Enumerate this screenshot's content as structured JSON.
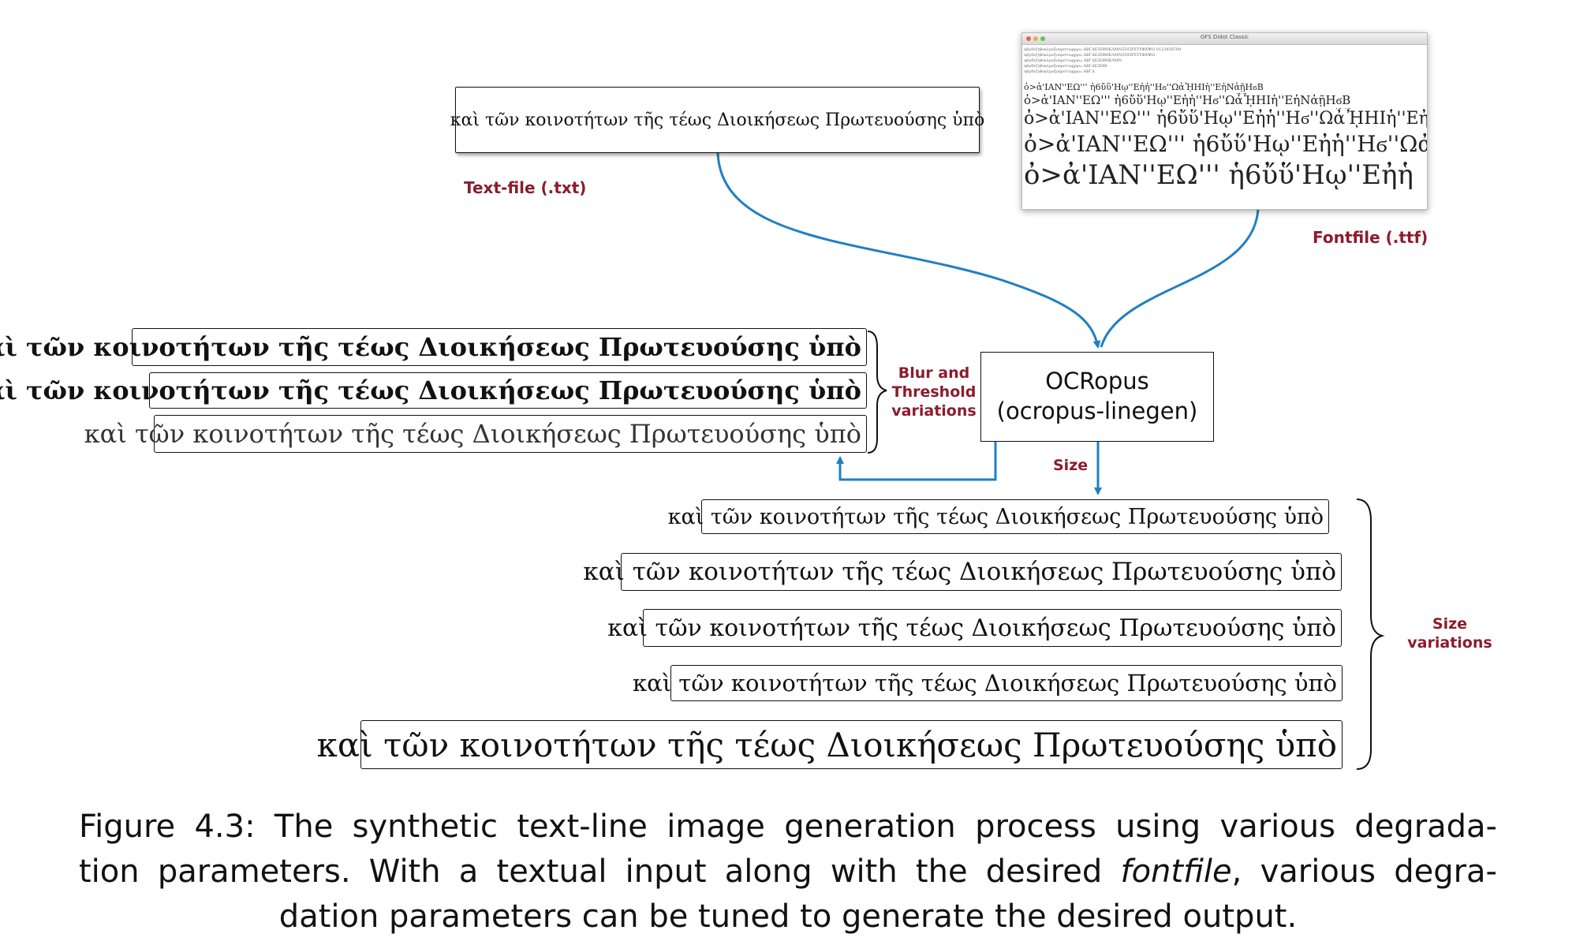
{
  "text_file": {
    "content": "καὶ τῶν κοινοτήτων τῆς τέως Διοικήσεως Πρωτευούσης ὑπὸ",
    "label": "Text-file (.txt)"
  },
  "font_file": {
    "label": "Fontfile (.ttf)",
    "window_title": "GFS Didot Classic",
    "glyph_lines": [
      "ὀ>ἀ'ΙΑΝ''ΕΩ''' ἡ6ὔὕ'Ηῳ''Εἠἡ''Ηϭ''ΩἆᾞΗΙἡ''ΕἠΝἀῇΗϭΒ",
      "ὀ>ἀ'ΙΑΝ''ΕΩ''' ἡ6ὔὕ'Ηῳ''Εἠἡ''Ηϭ''ΩἆᾞΗΙἡ''ΕἠΝἀῇΗϭΒ",
      "ὀ>ἀ'ΙΑΝ''ΕΩ''' ἡ6ὔὕ'Ηῳ''Εἠἡ''Ηϭ''ΩἆᾞΗΙἡ''ΕἠΝἀ",
      "ὀ>ἀ'ΙΑΝ''ΕΩ''' ἡ6ὔὕ'Ηῳ''Εἠἡ''Ηϭ''Ωἀ",
      "ὀ>ἀ'ΙΑΝ''ΕΩ''' ἡ6ὔὕ'Ηῳ''Εἠἡ"
    ]
  },
  "ocropus": {
    "line1": "OCRopus",
    "line2": "(ocropus-linegen)"
  },
  "blur_label": [
    "Blur and",
    "Threshold",
    "variations"
  ],
  "size_arrow_label": "Size",
  "size_variations_label": [
    "Size",
    "variations"
  ],
  "blur_lines": [
    "καὶ τῶν κοινοτήτων τῆς τέως Διοικήσεως Πρωτευούσης ὑπὸ",
    "καὶ τῶν κοινοτήτων τῆς τέως Διοικήσεως Πρωτευούσης ὑπὸ",
    "καὶ τῶν κοινοτήτων τῆς τέως Διοικήσεως Πρωτευούσης ὑπὸ"
  ],
  "size_lines": [
    "καὶ τῶν κοινοτήτων τῆς τέως Διοικήσεως Πρωτευούσης ὑπὸ",
    "καὶ τῶν κοινοτήτων τῆς τέως Διοικήσεως Πρωτευούσης ὑπὸ",
    "καὶ τῶν κοινοτήτων τῆς τέως Διοικήσεως Πρωτευούσης ὑπὸ",
    "καὶ τῶν κοινοτήτων τῆς τέως Διοικήσεως Πρωτευούσης ὑπὸ",
    "καὶ τῶν κοινοτήτων τῆς τέως Διοικήσεως Πρωτευούσης ὑπὸ"
  ],
  "caption": {
    "line1": "Figure 4.3: The synthetic text-line image generation process using various degrada-",
    "line2_a": "tion parameters. With a textual input along with the desired ",
    "line2_em": "fontfile",
    "line2_b": ", various degra-",
    "line3": "dation parameters can be tuned to generate the desired output."
  },
  "colors": {
    "arrow": "#1f7fc4",
    "label": "#8b1c2c"
  }
}
